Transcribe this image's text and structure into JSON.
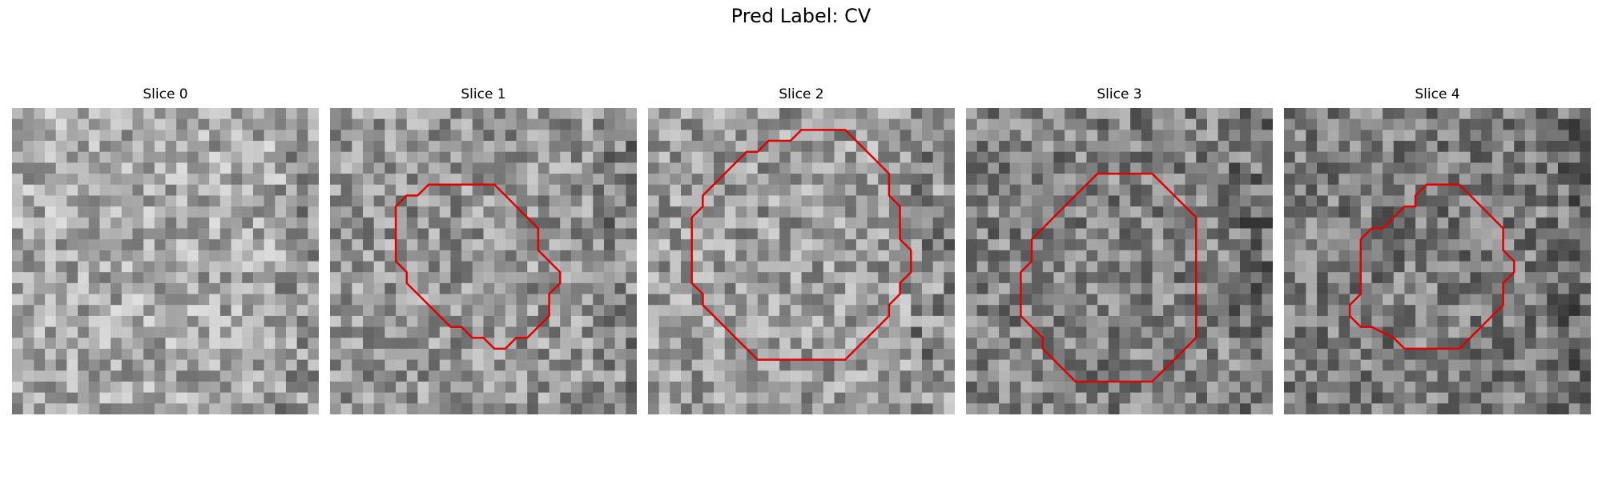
{
  "figure": {
    "title": "Pred Label: CV"
  },
  "colors": {
    "background": "#ffffff",
    "contour": "#e00000",
    "text": "#000000"
  },
  "image_grid": {
    "cells": 28
  },
  "slices": [
    {
      "title": "Slice 0",
      "mean_gray": 168,
      "contour": []
    },
    {
      "title": "Slice 1",
      "mean_gray": 150,
      "contour": [
        [
          11,
          7
        ],
        [
          15,
          7
        ],
        [
          16,
          8
        ],
        [
          17,
          9
        ],
        [
          18,
          10
        ],
        [
          19,
          11
        ],
        [
          19,
          13
        ],
        [
          20,
          14
        ],
        [
          21,
          15
        ],
        [
          21,
          16
        ],
        [
          20,
          17
        ],
        [
          20,
          19
        ],
        [
          19,
          20
        ],
        [
          18,
          21
        ],
        [
          17,
          21
        ],
        [
          16,
          22
        ],
        [
          15,
          22
        ],
        [
          14,
          21
        ],
        [
          13,
          21
        ],
        [
          12,
          20
        ],
        [
          11,
          20
        ],
        [
          10,
          19
        ],
        [
          9,
          18
        ],
        [
          8,
          17
        ],
        [
          7,
          16
        ],
        [
          7,
          15
        ],
        [
          6,
          14
        ],
        [
          6,
          9
        ],
        [
          7,
          8
        ],
        [
          8,
          8
        ],
        [
          9,
          7
        ]
      ]
    },
    {
      "title": "Slice 2",
      "mean_gray": 155,
      "contour": [
        [
          14,
          2
        ],
        [
          18,
          2
        ],
        [
          19,
          3
        ],
        [
          20,
          4
        ],
        [
          21,
          5
        ],
        [
          22,
          6
        ],
        [
          22,
          8
        ],
        [
          23,
          9
        ],
        [
          23,
          12
        ],
        [
          24,
          13
        ],
        [
          24,
          15
        ],
        [
          23,
          16
        ],
        [
          23,
          17
        ],
        [
          22,
          18
        ],
        [
          22,
          19
        ],
        [
          21,
          20
        ],
        [
          20,
          21
        ],
        [
          19,
          22
        ],
        [
          18,
          23
        ],
        [
          10,
          23
        ],
        [
          9,
          22
        ],
        [
          8,
          21
        ],
        [
          7,
          20
        ],
        [
          6,
          19
        ],
        [
          5,
          18
        ],
        [
          5,
          17
        ],
        [
          4,
          16
        ],
        [
          4,
          10
        ],
        [
          5,
          9
        ],
        [
          5,
          8
        ],
        [
          6,
          7
        ],
        [
          7,
          6
        ],
        [
          8,
          5
        ],
        [
          9,
          4
        ],
        [
          10,
          4
        ],
        [
          11,
          3
        ],
        [
          13,
          3
        ]
      ]
    },
    {
      "title": "Slice 3",
      "mean_gray": 130,
      "contour": [
        [
          12,
          6
        ],
        [
          17,
          6
        ],
        [
          18,
          7
        ],
        [
          19,
          8
        ],
        [
          20,
          9
        ],
        [
          21,
          10
        ],
        [
          21,
          21
        ],
        [
          20,
          22
        ],
        [
          19,
          23
        ],
        [
          18,
          24
        ],
        [
          17,
          25
        ],
        [
          10,
          25
        ],
        [
          9,
          24
        ],
        [
          8,
          23
        ],
        [
          7,
          22
        ],
        [
          7,
          21
        ],
        [
          6,
          20
        ],
        [
          5,
          19
        ],
        [
          5,
          15
        ],
        [
          6,
          14
        ],
        [
          6,
          12
        ],
        [
          7,
          11
        ],
        [
          8,
          10
        ],
        [
          9,
          9
        ],
        [
          10,
          8
        ],
        [
          11,
          7
        ]
      ]
    },
    {
      "title": "Slice 4",
      "mean_gray": 125,
      "contour": [
        [
          13,
          7
        ],
        [
          16,
          7
        ],
        [
          17,
          8
        ],
        [
          18,
          9
        ],
        [
          19,
          10
        ],
        [
          20,
          11
        ],
        [
          20,
          13
        ],
        [
          21,
          14
        ],
        [
          21,
          15
        ],
        [
          20,
          16
        ],
        [
          20,
          18
        ],
        [
          19,
          19
        ],
        [
          18,
          20
        ],
        [
          17,
          21
        ],
        [
          16,
          22
        ],
        [
          11,
          22
        ],
        [
          10,
          21
        ],
        [
          8,
          20
        ],
        [
          7,
          20
        ],
        [
          6,
          19
        ],
        [
          6,
          18
        ],
        [
          7,
          17
        ],
        [
          7,
          12
        ],
        [
          8,
          11
        ],
        [
          9,
          11
        ],
        [
          10,
          10
        ],
        [
          11,
          9
        ],
        [
          12,
          9
        ],
        [
          12,
          8
        ]
      ]
    }
  ]
}
